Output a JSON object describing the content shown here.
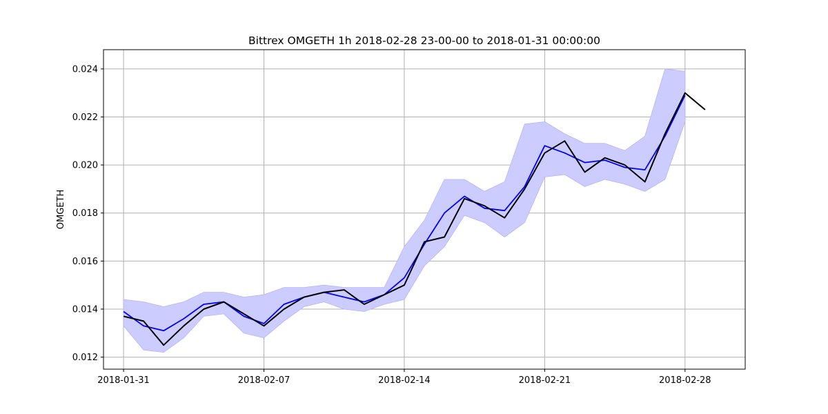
{
  "chart_data": {
    "type": "line",
    "title": "Bittrex OMGETH 1h 2018-02-28 23-00-00 to 2018-01-31 00:00:00",
    "xlabel": "",
    "ylabel": "OMGETH",
    "xlim": [
      "2018-01-30",
      "2018-03-03"
    ],
    "ylim": [
      0.0115,
      0.0248
    ],
    "grid": true,
    "legend": "none",
    "x_ticks": [
      "2018-01-31",
      "2018-02-07",
      "2018-02-14",
      "2018-02-21",
      "2018-02-28"
    ],
    "y_ticks": [
      0.012,
      0.014,
      0.016,
      0.018,
      0.02,
      0.022,
      0.024
    ],
    "x": [
      "2018-01-31",
      "2018-02-01",
      "2018-02-02",
      "2018-02-03",
      "2018-02-04",
      "2018-02-05",
      "2018-02-06",
      "2018-02-07",
      "2018-02-08",
      "2018-02-09",
      "2018-02-10",
      "2018-02-11",
      "2018-02-12",
      "2018-02-13",
      "2018-02-14",
      "2018-02-15",
      "2018-02-16",
      "2018-02-17",
      "2018-02-18",
      "2018-02-19",
      "2018-02-20",
      "2018-02-21",
      "2018-02-22",
      "2018-02-23",
      "2018-02-24",
      "2018-02-25",
      "2018-02-26",
      "2018-02-27",
      "2018-02-28",
      "2018-03-01"
    ],
    "series": [
      {
        "role": "price",
        "color": "#000000",
        "values": [
          0.0137,
          0.0135,
          0.0125,
          0.0133,
          0.014,
          0.0143,
          0.0138,
          0.0133,
          0.014,
          0.0145,
          0.0147,
          0.0148,
          0.0142,
          0.0146,
          0.015,
          0.0168,
          0.017,
          0.0186,
          0.0183,
          0.0178,
          0.019,
          0.0205,
          0.021,
          0.0197,
          0.0203,
          0.02,
          0.0193,
          0.0213,
          0.023,
          0.0223
        ]
      },
      {
        "role": "moving-average",
        "color": "#0000ff",
        "values": [
          0.0139,
          0.0133,
          0.0131,
          0.0136,
          0.0142,
          0.0143,
          0.0137,
          0.0134,
          0.0142,
          0.0145,
          0.0147,
          0.0145,
          0.0143,
          0.0146,
          0.0153,
          0.0167,
          0.018,
          0.0187,
          0.0182,
          0.0181,
          0.0191,
          0.0208,
          0.0205,
          0.0201,
          0.0202,
          0.0199,
          0.0198,
          0.0212,
          0.0229,
          null
        ]
      },
      {
        "role": "upper-band",
        "color": "#ccccff",
        "values": [
          0.0144,
          0.0143,
          0.0141,
          0.0143,
          0.0147,
          0.0147,
          0.0145,
          0.0146,
          0.0149,
          0.0149,
          0.015,
          0.0149,
          0.0149,
          0.0149,
          0.0166,
          0.0177,
          0.0194,
          0.0194,
          0.0189,
          0.0193,
          0.0217,
          0.0218,
          0.0213,
          0.0209,
          0.0209,
          0.0206,
          0.0212,
          0.024,
          0.0239,
          null
        ]
      },
      {
        "role": "lower-band",
        "color": "#ccccff",
        "values": [
          0.0133,
          0.0123,
          0.0122,
          0.0128,
          0.0137,
          0.0138,
          0.013,
          0.0128,
          0.0135,
          0.0141,
          0.0143,
          0.014,
          0.0139,
          0.0142,
          0.0144,
          0.0158,
          0.0166,
          0.0179,
          0.0176,
          0.017,
          0.0176,
          0.0195,
          0.0196,
          0.0191,
          0.0194,
          0.0192,
          0.0189,
          0.0194,
          0.0218,
          null
        ]
      }
    ]
  }
}
